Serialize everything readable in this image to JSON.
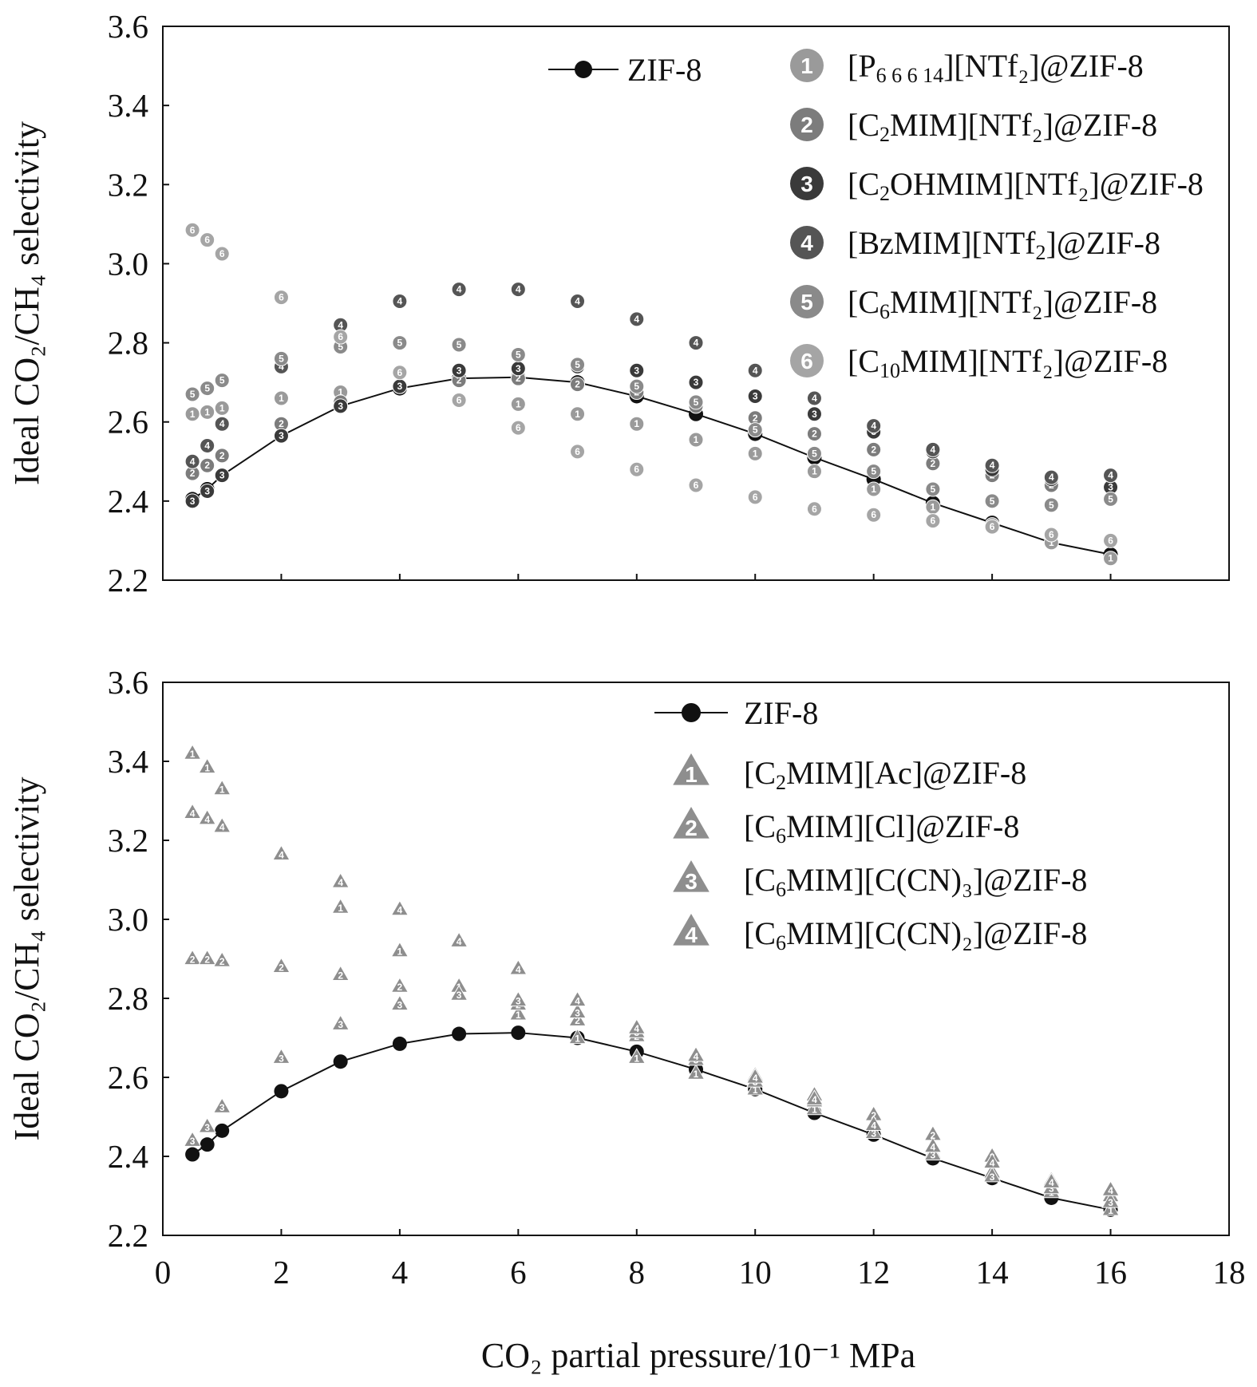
{
  "chart_data": [
    {
      "type": "scatter",
      "title": "",
      "xlabel": "CO₂ partial pressure/10⁻¹ MPa",
      "ylabel": "Ideal CO₂/CH₄ selectivity",
      "xlim": [
        0,
        18
      ],
      "ylim": [
        2.2,
        3.6
      ],
      "xticks": [
        0,
        2,
        4,
        6,
        8,
        10,
        12,
        14,
        16,
        18
      ],
      "yticks": [
        2.2,
        2.4,
        2.6,
        2.8,
        3.0,
        3.2,
        3.4,
        3.6
      ],
      "ytick_labels": [
        "2.2",
        "2.4",
        "2.6",
        "2.8",
        "3.0",
        "3.2",
        "3.4",
        "3.6"
      ],
      "xtick_labels": [
        "0",
        "2",
        "4",
        "6",
        "8",
        "10",
        "12",
        "14",
        "16",
        "18"
      ],
      "legend_position": "top-right",
      "grid": false,
      "series": [
        {
          "name": "ZIF-8",
          "marker": "circle-line",
          "color": "#111111",
          "x": [
            0.5,
            0.75,
            1,
            2,
            3,
            4,
            5,
            6,
            7,
            8,
            9,
            10,
            11,
            12,
            13,
            14,
            15,
            16
          ],
          "values": [
            2.405,
            2.43,
            2.465,
            2.565,
            2.64,
            2.685,
            2.71,
            2.713,
            2.7,
            2.665,
            2.62,
            2.57,
            2.51,
            2.455,
            2.395,
            2.345,
            2.295,
            2.265
          ]
        },
        {
          "name": "[P6 6 6 14][NTf2]@ZIF-8",
          "label": "1",
          "marker": "circle",
          "color": "#9a9a9a",
          "x": [
            0.5,
            0.75,
            1,
            2,
            3,
            4,
            5,
            6,
            7,
            8,
            9,
            10,
            11,
            12,
            13,
            14,
            15,
            16
          ],
          "values": [
            2.62,
            2.625,
            2.635,
            2.66,
            2.675,
            2.69,
            2.705,
            2.645,
            2.62,
            2.595,
            2.555,
            2.52,
            2.475,
            2.43,
            2.385,
            2.34,
            2.295,
            2.255
          ]
        },
        {
          "name": "[C2MIM][NTf2]@ZIF-8",
          "label": "2",
          "marker": "circle",
          "color": "#7c7c7c",
          "x": [
            0.5,
            0.75,
            1,
            2,
            3,
            4,
            5,
            6,
            7,
            8,
            9,
            10,
            11,
            12,
            13,
            14,
            15,
            16
          ],
          "values": [
            2.47,
            2.49,
            2.515,
            2.595,
            2.65,
            2.69,
            2.705,
            2.71,
            2.695,
            2.675,
            2.64,
            2.61,
            2.57,
            2.53,
            2.495,
            2.465,
            2.44,
            2.405
          ]
        },
        {
          "name": "[C2OHMIM][NTf2]@ZIF-8",
          "label": "3",
          "marker": "circle",
          "color": "#3a3a3a",
          "x": [
            0.5,
            0.75,
            1,
            2,
            3,
            4,
            5,
            6,
            7,
            8,
            9,
            10,
            11,
            12,
            13,
            14,
            15,
            16
          ],
          "values": [
            2.4,
            2.425,
            2.465,
            2.565,
            2.64,
            2.69,
            2.73,
            2.735,
            2.74,
            2.73,
            2.7,
            2.665,
            2.62,
            2.575,
            2.525,
            2.48,
            2.455,
            2.435
          ]
        },
        {
          "name": "[BzMIM][NTf2]@ZIF-8",
          "label": "4",
          "marker": "circle",
          "color": "#555555",
          "x": [
            0.5,
            0.75,
            1,
            2,
            3,
            4,
            5,
            6,
            7,
            8,
            9,
            10,
            11,
            12,
            13,
            14,
            15,
            16
          ],
          "values": [
            2.5,
            2.54,
            2.595,
            2.74,
            2.845,
            2.905,
            2.935,
            2.935,
            2.905,
            2.86,
            2.8,
            2.73,
            2.66,
            2.59,
            2.53,
            2.49,
            2.46,
            2.465
          ]
        },
        {
          "name": "[C6MIM][NTf2]@ZIF-8",
          "label": "5",
          "marker": "circle",
          "color": "#8a8a8a",
          "x": [
            0.5,
            0.75,
            1,
            2,
            3,
            4,
            5,
            6,
            7,
            8,
            9,
            10,
            11,
            12,
            13,
            14,
            15,
            16
          ],
          "values": [
            2.67,
            2.685,
            2.705,
            2.76,
            2.79,
            2.8,
            2.795,
            2.77,
            2.745,
            2.69,
            2.65,
            2.58,
            2.52,
            2.475,
            2.43,
            2.4,
            2.39,
            2.405
          ]
        },
        {
          "name": "[C10MIM][NTf2]@ZIF-8",
          "label": "6",
          "marker": "circle",
          "color": "#a5a5a5",
          "x": [
            0.5,
            0.75,
            1,
            2,
            3,
            4,
            5,
            6,
            7,
            8,
            9,
            10,
            11,
            12,
            13,
            14,
            15,
            16
          ],
          "values": [
            3.085,
            3.06,
            3.025,
            2.915,
            2.815,
            2.725,
            2.655,
            2.585,
            2.525,
            2.48,
            2.44,
            2.41,
            2.38,
            2.365,
            2.35,
            2.335,
            2.315,
            2.3
          ]
        }
      ]
    },
    {
      "type": "scatter",
      "title": "",
      "xlabel": "CO₂ partial pressure/10⁻¹ MPa",
      "ylabel": "Ideal CO₂/CH₄ selectivity",
      "xlim": [
        0,
        18
      ],
      "ylim": [
        2.2,
        3.6
      ],
      "xticks": [
        0,
        2,
        4,
        6,
        8,
        10,
        12,
        14,
        16,
        18
      ],
      "yticks": [
        2.2,
        2.4,
        2.6,
        2.8,
        3.0,
        3.2,
        3.4,
        3.6
      ],
      "ytick_labels": [
        "2.2",
        "2.4",
        "2.6",
        "2.8",
        "3.0",
        "3.2",
        "3.4",
        "3.6"
      ],
      "xtick_labels": [
        "0",
        "2",
        "4",
        "6",
        "8",
        "10",
        "12",
        "14",
        "16",
        "18"
      ],
      "legend_position": "top-right",
      "grid": false,
      "series": [
        {
          "name": "ZIF-8",
          "marker": "circle-line",
          "color": "#111111",
          "x": [
            0.5,
            0.75,
            1,
            2,
            3,
            4,
            5,
            6,
            7,
            8,
            9,
            10,
            11,
            12,
            13,
            14,
            15,
            16
          ],
          "values": [
            2.405,
            2.43,
            2.465,
            2.565,
            2.64,
            2.685,
            2.71,
            2.713,
            2.7,
            2.665,
            2.62,
            2.57,
            2.51,
            2.455,
            2.395,
            2.345,
            2.295,
            2.265
          ]
        },
        {
          "name": "[C2MIM][Ac]@ZIF-8",
          "label": "1",
          "marker": "triangle",
          "color": "#8e8e8e",
          "x": [
            0.5,
            0.75,
            1,
            2,
            3,
            4,
            5,
            6,
            7,
            8,
            9,
            10,
            11,
            12,
            13,
            14,
            15,
            16
          ],
          "values": [
            3.42,
            3.385,
            3.33,
            3.165,
            3.03,
            2.92,
            2.83,
            2.76,
            2.7,
            2.65,
            2.61,
            2.57,
            2.52,
            2.46,
            2.41,
            2.36,
            2.31,
            2.265
          ]
        },
        {
          "name": "[C6MIM][Cl]@ZIF-8",
          "label": "2",
          "marker": "triangle",
          "color": "#8e8e8e",
          "x": [
            0.5,
            0.75,
            1,
            2,
            3,
            4,
            5,
            6,
            7,
            8,
            9,
            10,
            11,
            12,
            13,
            14,
            15,
            16
          ],
          "values": [
            2.9,
            2.9,
            2.895,
            2.88,
            2.86,
            2.83,
            2.81,
            2.785,
            2.745,
            2.705,
            2.655,
            2.605,
            2.555,
            2.505,
            2.455,
            2.4,
            2.34,
            2.3
          ]
        },
        {
          "name": "[C6MIM][C(CN)3]@ZIF-8",
          "label": "3",
          "marker": "triangle",
          "color": "#8e8e8e",
          "x": [
            0.5,
            0.75,
            1,
            2,
            3,
            4,
            5,
            6,
            7,
            8,
            9,
            10,
            11,
            12,
            13,
            14,
            15,
            16
          ],
          "values": [
            2.44,
            2.475,
            2.525,
            2.65,
            2.735,
            2.785,
            2.81,
            2.795,
            2.765,
            2.715,
            2.645,
            2.59,
            2.54,
            2.46,
            2.405,
            2.35,
            2.32,
            2.285
          ]
        },
        {
          "name": "[C6MIM][C(CN)2]@ZIF-8",
          "label": "4",
          "marker": "triangle",
          "color": "#8e8e8e",
          "x": [
            0.5,
            0.75,
            1,
            2,
            3,
            4,
            5,
            6,
            7,
            8,
            9,
            10,
            11,
            12,
            13,
            14,
            15,
            16
          ],
          "values": [
            3.27,
            3.255,
            3.235,
            3.165,
            3.095,
            3.025,
            2.945,
            2.875,
            2.795,
            2.725,
            2.655,
            2.6,
            2.545,
            2.48,
            2.425,
            2.385,
            2.335,
            2.315
          ]
        }
      ]
    }
  ],
  "legend_top": [
    {
      "pre": "",
      "main": "ZIF-8",
      "sub": "",
      "post": "",
      "label": ""
    },
    {
      "pre": "[P",
      "sub": "6 6 6 14",
      "post": "][NTf₂]@ZIF-8",
      "label": "1"
    },
    {
      "pre": "[C",
      "sub": "2",
      "post": "MIM][NTf₂]@ZIF-8",
      "label": "2"
    },
    {
      "pre": "[C",
      "sub": "2",
      "post": "OHMIM][NTf₂]@ZIF-8",
      "label": "3"
    },
    {
      "pre": "[BzMIM][NTf",
      "sub": "2",
      "post": "]@ZIF-8",
      "label": "4"
    },
    {
      "pre": "[C",
      "sub": "6",
      "post": "MIM][NTf₂]@ZIF-8",
      "label": "5"
    },
    {
      "pre": "[C",
      "sub": "10",
      "post": "MIM][NTf₂]@ZIF-8",
      "label": "6"
    }
  ],
  "legend_bottom": [
    {
      "pre": "ZIF-8",
      "sub": "",
      "post": "",
      "label": ""
    },
    {
      "pre": "[C",
      "sub": "2",
      "post": "MIM][Ac]@ZIF-8",
      "label": "1"
    },
    {
      "pre": "[C",
      "sub": "6",
      "post": "MIM][Cl]@ZIF-8",
      "label": "2"
    },
    {
      "pre": "[C",
      "sub": "6",
      "post": "MIM][C(CN)₃]@ZIF-8",
      "label": "3"
    },
    {
      "pre": "[C",
      "sub": "6",
      "post": "MIM][C(CN)₂]@ZIF-8",
      "label": "4"
    }
  ]
}
